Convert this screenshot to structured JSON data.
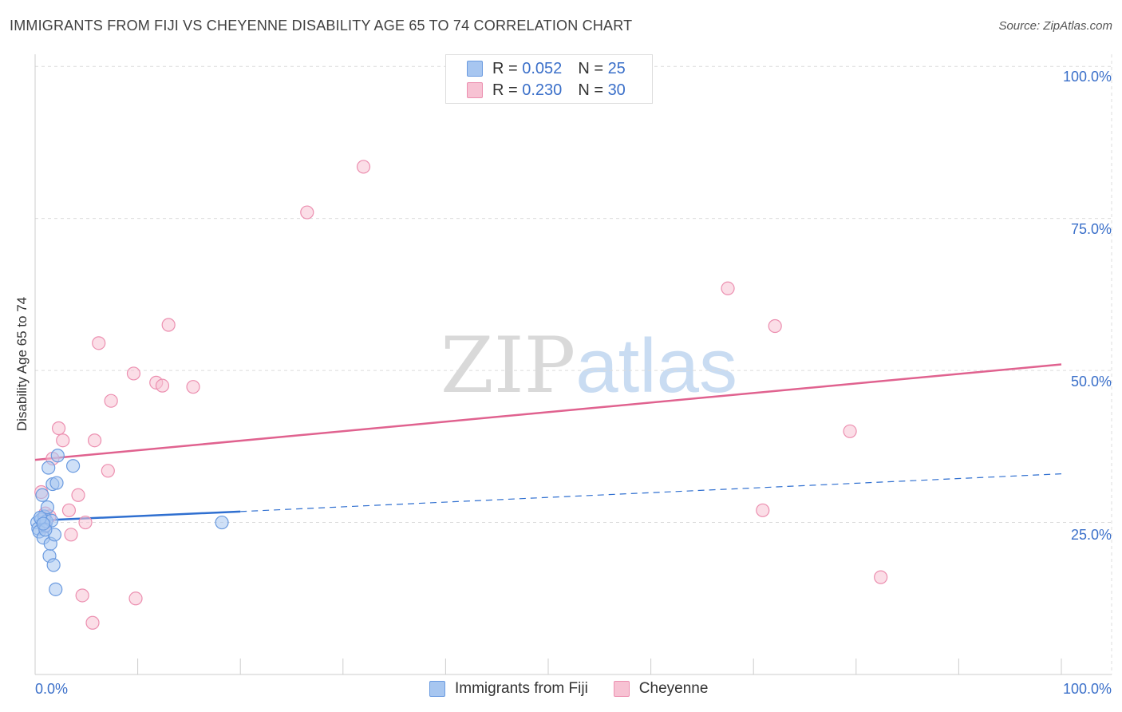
{
  "title": "IMMIGRANTS FROM FIJI VS CHEYENNE DISABILITY AGE 65 TO 74 CORRELATION CHART",
  "source": "Source: ZipAtlas.com",
  "watermark": {
    "part1": "ZIP",
    "part2": "atlas"
  },
  "legend_top": [
    {
      "r_label": "R =",
      "r_value": "0.052",
      "n_label": "N =",
      "n_value": "25",
      "color": "#a7c6f0",
      "border": "#6b9be0"
    },
    {
      "r_label": "R =",
      "r_value": "0.230",
      "n_label": "N =",
      "n_value": "30",
      "color": "#f7c2d3",
      "border": "#ec8fb0"
    }
  ],
  "legend_bottom": [
    {
      "label": "Immigrants from Fiji",
      "color": "#a7c6f0",
      "border": "#6b9be0"
    },
    {
      "label": "Cheyenne",
      "color": "#f7c2d3",
      "border": "#ec8fb0"
    }
  ],
  "y_axis_label": "Disability Age 65 to 74",
  "y_ticks": [
    "100.0%",
    "75.0%",
    "50.0%",
    "25.0%"
  ],
  "x_ticks": [
    "0.0%",
    "100.0%"
  ],
  "chart_data": {
    "type": "scatter",
    "title": "IMMIGRANTS FROM FIJI VS CHEYENNE DISABILITY AGE 65 TO 74 CORRELATION CHART",
    "xlabel": "",
    "ylabel": "Disability Age 65 to 74",
    "xlim": [
      0,
      100
    ],
    "ylim": [
      0,
      102
    ],
    "grid": true,
    "legend_position": "top-center",
    "series": [
      {
        "name": "Immigrants from Fiji",
        "color": "#6b9be0",
        "fill": "#a7c6f0",
        "trend_line_color": "#2f6fd0",
        "trend": {
          "x_start": 0,
          "y_start": 25.3,
          "x_solid_end": 20,
          "y_solid_end": 26.8,
          "x_end": 100,
          "y_end": 33.0
        },
        "points": [
          [
            0.2,
            25.0
          ],
          [
            0.3,
            24.0
          ],
          [
            0.4,
            23.5
          ],
          [
            0.6,
            25.5
          ],
          [
            0.7,
            29.5
          ],
          [
            0.8,
            22.5
          ],
          [
            0.9,
            26.0
          ],
          [
            1.0,
            24.5
          ],
          [
            1.1,
            25.2
          ],
          [
            1.2,
            27.5
          ],
          [
            1.3,
            34.0
          ],
          [
            1.4,
            19.5
          ],
          [
            1.5,
            21.5
          ],
          [
            1.6,
            25.3
          ],
          [
            1.7,
            31.3
          ],
          [
            1.8,
            18.0
          ],
          [
            1.9,
            23.0
          ],
          [
            2.0,
            14.0
          ],
          [
            2.1,
            31.5
          ],
          [
            2.2,
            36.0
          ],
          [
            3.7,
            34.3
          ],
          [
            18.2,
            25.0
          ],
          [
            0.5,
            25.8
          ],
          [
            1.0,
            23.8
          ],
          [
            0.8,
            24.8
          ]
        ]
      },
      {
        "name": "Cheyenne",
        "color": "#ec8fb0",
        "fill": "#f7c2d3",
        "trend_line_color": "#e0628f",
        "trend": {
          "x_start": 0,
          "y_start": 35.3,
          "x_end": 100,
          "y_end": 51.0
        },
        "points": [
          [
            0.6,
            30.0
          ],
          [
            1.0,
            26.5
          ],
          [
            1.4,
            26.0
          ],
          [
            1.7,
            35.5
          ],
          [
            2.3,
            40.5
          ],
          [
            2.7,
            38.5
          ],
          [
            3.3,
            27.0
          ],
          [
            3.5,
            23.0
          ],
          [
            4.2,
            29.5
          ],
          [
            4.6,
            13.0
          ],
          [
            4.9,
            25.0
          ],
          [
            5.6,
            8.5
          ],
          [
            5.8,
            38.5
          ],
          [
            6.2,
            54.5
          ],
          [
            7.1,
            33.5
          ],
          [
            7.4,
            45.0
          ],
          [
            9.6,
            49.5
          ],
          [
            9.8,
            12.5
          ],
          [
            11.8,
            48.0
          ],
          [
            12.4,
            47.5
          ],
          [
            13.0,
            57.5
          ],
          [
            15.4,
            47.3
          ],
          [
            26.5,
            76.0
          ],
          [
            32.0,
            83.5
          ],
          [
            67.5,
            63.5
          ],
          [
            72.1,
            57.3
          ],
          [
            70.9,
            27.0
          ],
          [
            79.4,
            40.0
          ],
          [
            82.4,
            16.0
          ],
          [
            0.9,
            24.3
          ]
        ]
      }
    ]
  }
}
